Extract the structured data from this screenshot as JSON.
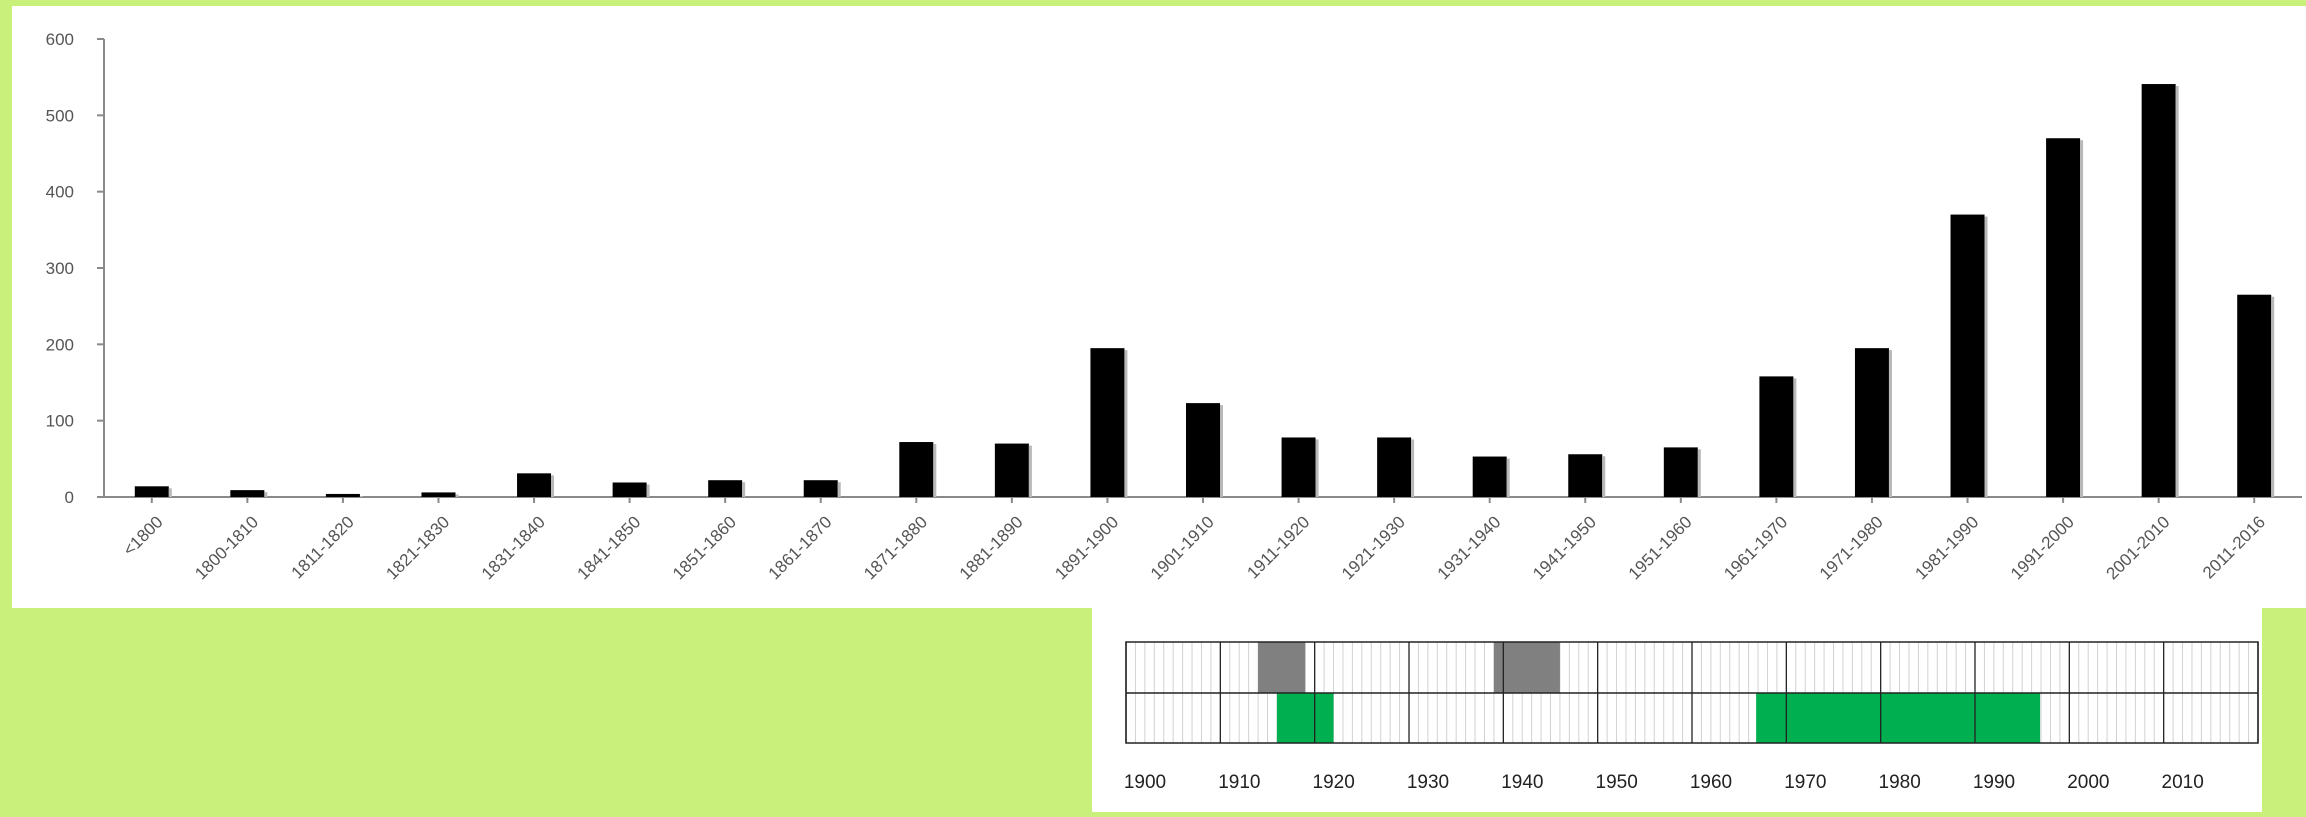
{
  "chart_data": [
    {
      "type": "bar",
      "categories": [
        "<1800",
        "1800-1810",
        "1811-1820",
        "1821-1830",
        "1831-1840",
        "1841-1850",
        "1851-1860",
        "1861-1870",
        "1871-1880",
        "1881-1890",
        "1891-1900",
        "1901-1910",
        "1911-1920",
        "1921-1930",
        "1931-1940",
        "1941-1950",
        "1951-1960",
        "1961-1970",
        "1971-1980",
        "1981-1990",
        "1991-2000",
        "2001-2010",
        "2011-2016"
      ],
      "values": [
        14,
        9,
        4,
        6,
        31,
        19,
        22,
        22,
        72,
        70,
        195,
        123,
        78,
        78,
        53,
        56,
        65,
        158,
        195,
        370,
        470,
        541,
        265
      ],
      "yticks": [
        0,
        100,
        200,
        300,
        400,
        500,
        600
      ],
      "ylim": [
        0,
        600
      ],
      "bar_color": "#000000"
    },
    {
      "type": "timeline",
      "xticks": [
        1900,
        1910,
        1920,
        1930,
        1940,
        1950,
        1960,
        1970,
        1980,
        1990,
        2000,
        2010
      ],
      "xlim": [
        1900,
        2020
      ],
      "rows": [
        {
          "color": "#808080",
          "spans": [
            [
              1914,
              1919
            ],
            [
              1939,
              1946
            ]
          ]
        },
        {
          "color": "#00b050",
          "spans": [
            [
              1916,
              1922
            ],
            [
              1966.8,
              1996.9
            ]
          ]
        }
      ]
    }
  ]
}
